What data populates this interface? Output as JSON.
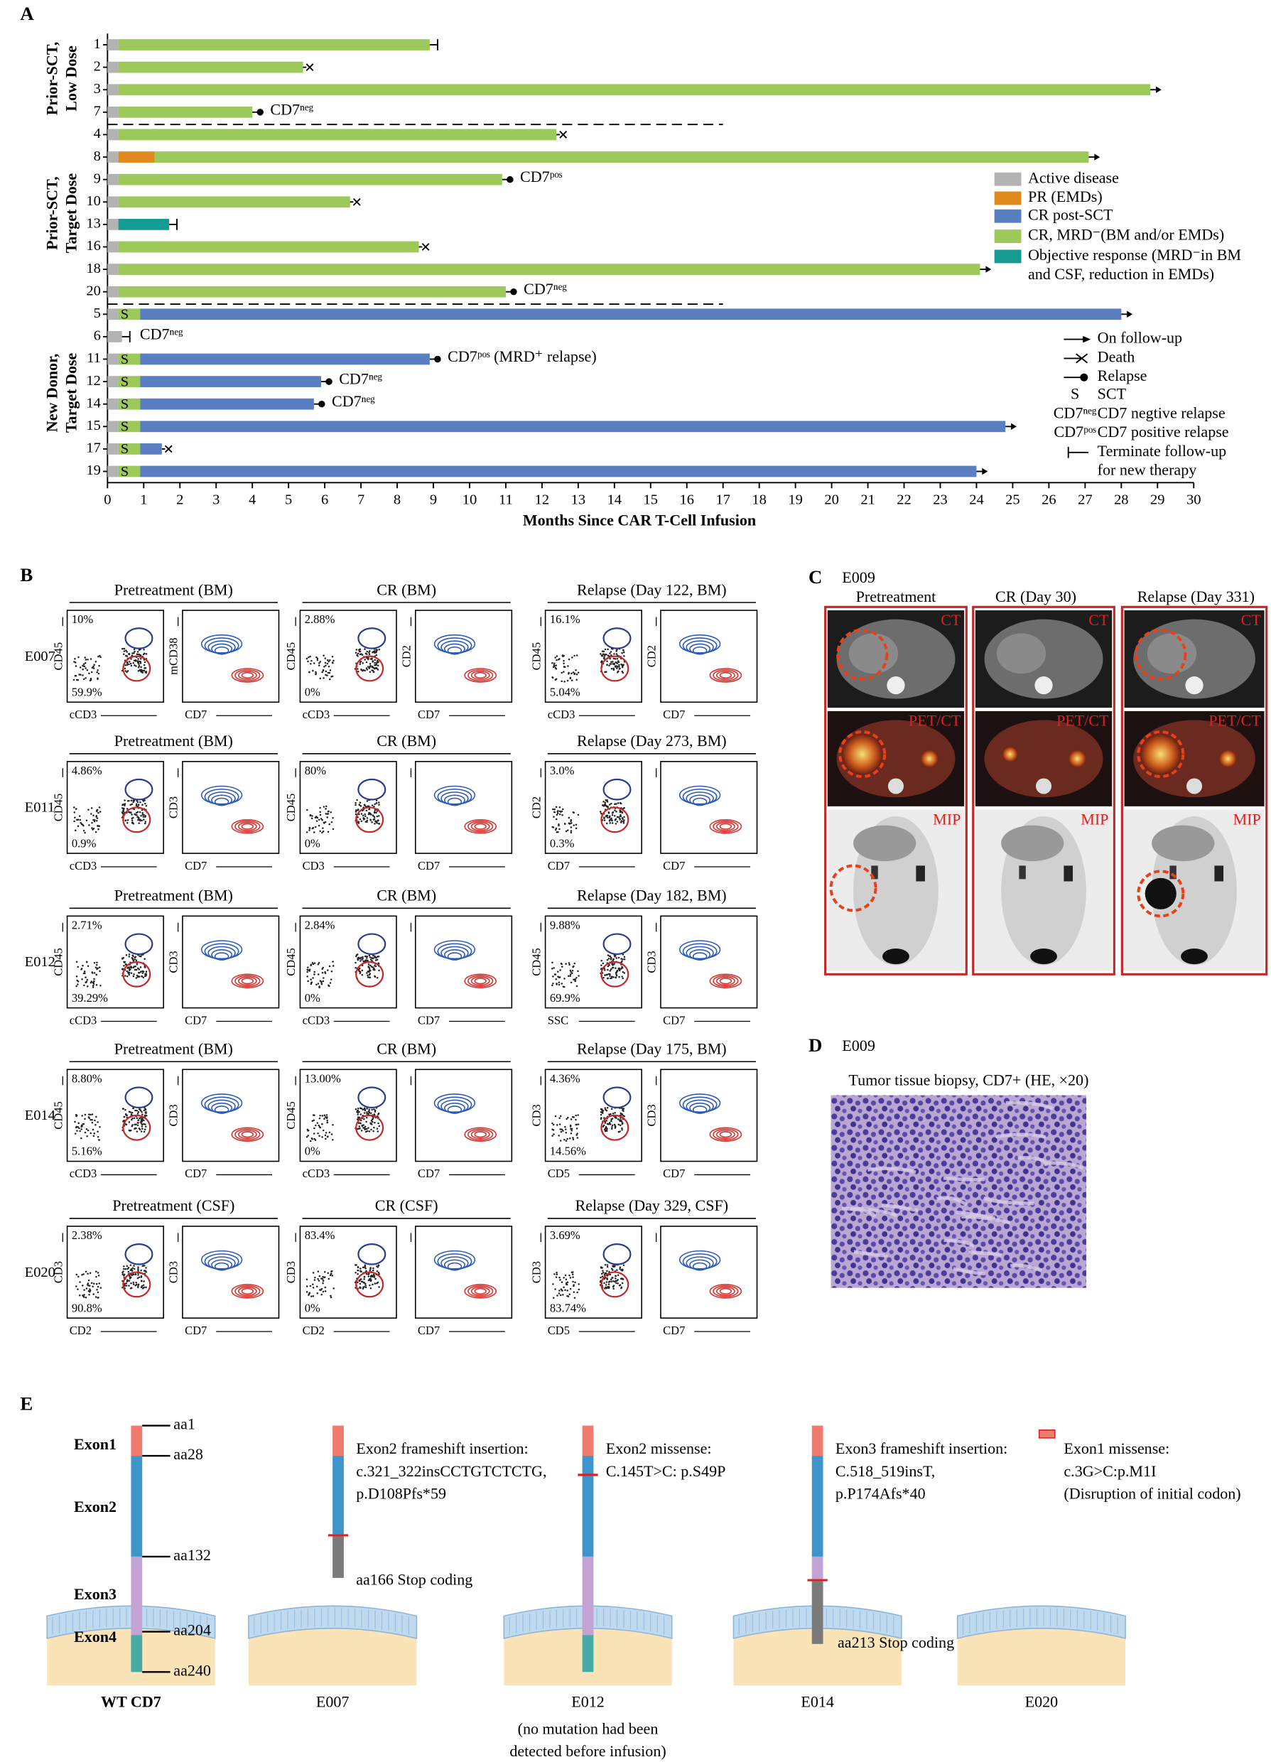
{
  "chart_data": {
    "type": "bar",
    "orientation": "horizontal",
    "stacked": true,
    "panel_label": "A",
    "xlabel": "Months Since CAR T-Cell Infusion",
    "xlim": [
      0,
      30
    ],
    "xticks": [
      0,
      1,
      2,
      3,
      4,
      5,
      6,
      7,
      8,
      9,
      10,
      11,
      12,
      13,
      14,
      15,
      16,
      17,
      18,
      19,
      20,
      21,
      22,
      23,
      24,
      25,
      26,
      27,
      28,
      29,
      30
    ],
    "legend_items": [
      {
        "name": "Active disease",
        "color": "#b3b3b3"
      },
      {
        "name": "PR (EMDs)",
        "color": "#e08a1e"
      },
      {
        "name": "CR post-SCT",
        "color": "#5a7fc1"
      },
      {
        "name": "CR, MRD⁻(BM and/or EMDs)",
        "color": "#9dc85a"
      },
      {
        "name": [
          "Objective response (MRD⁻in BM",
          "and CSF, reduction in EMDs)"
        ],
        "color": "#139b94"
      }
    ],
    "markers": [
      {
        "symbol": "arrow",
        "name": "On follow-up"
      },
      {
        "symbol": "cross",
        "name": "Death"
      },
      {
        "symbol": "dot",
        "name": "Relapse"
      },
      {
        "symbol": "S",
        "name": "SCT"
      },
      {
        "symbol": "CD7ⁿᵉᵍ",
        "name": "CD7 negtive relapse"
      },
      {
        "symbol": "CD7ᵖᵒˢ",
        "name": "CD7 positive relapse"
      },
      {
        "symbol": "bar",
        "name": [
          "Terminate follow-up",
          "for new therapy"
        ]
      }
    ],
    "groups": [
      {
        "label": [
          "Prior-SCT,",
          "Low Dose"
        ],
        "patients": [
          {
            "id": "1",
            "values": [
              0.3,
              null,
              null,
              8.6,
              null
            ],
            "end": "bar"
          },
          {
            "id": "2",
            "values": [
              0.3,
              null,
              null,
              5.1,
              null
            ],
            "end": "cross"
          },
          {
            "id": "3",
            "values": [
              0.3,
              null,
              null,
              28.5,
              null
            ],
            "end": "arrow"
          },
          {
            "id": "7",
            "values": [
              0.3,
              null,
              null,
              3.7,
              null
            ],
            "end": "dot",
            "note": "CD7ⁿᵉᵍ"
          }
        ]
      },
      {
        "label": [
          "Prior-SCT,",
          "Target Dose"
        ],
        "patients": [
          {
            "id": "4",
            "values": [
              0.3,
              null,
              null,
              12.1,
              null
            ],
            "end": "cross"
          },
          {
            "id": "8",
            "values": [
              0.3,
              1.0,
              null,
              25.8,
              null
            ],
            "end": "arrow"
          },
          {
            "id": "9",
            "values": [
              0.3,
              null,
              null,
              10.6,
              null
            ],
            "end": "dot",
            "note": "CD7ᵖᵒˢ"
          },
          {
            "id": "10",
            "values": [
              0.3,
              null,
              null,
              6.4,
              null
            ],
            "end": "cross"
          },
          {
            "id": "13",
            "values": [
              0.3,
              null,
              null,
              null,
              1.4
            ],
            "end": "bar"
          },
          {
            "id": "16",
            "values": [
              0.3,
              null,
              null,
              8.3,
              null
            ],
            "end": "cross"
          },
          {
            "id": "18",
            "values": [
              0.3,
              null,
              null,
              23.8,
              null
            ],
            "end": "arrow"
          },
          {
            "id": "20",
            "values": [
              0.3,
              null,
              null,
              10.7,
              null
            ],
            "end": "dot",
            "note": "CD7ⁿᵉᵍ"
          }
        ]
      },
      {
        "label": [
          "New Donor,",
          "Target Dose"
        ],
        "patients": [
          {
            "id": "5",
            "values": [
              0.3,
              null,
              27.1,
              0.6,
              null
            ],
            "end": "arrow",
            "sct": true
          },
          {
            "id": "6",
            "values": [
              0.4,
              null,
              null,
              null,
              null
            ],
            "end": "bar",
            "note": "CD7ⁿᵉᵍ"
          },
          {
            "id": "11",
            "values": [
              0.3,
              null,
              8.0,
              0.6,
              null
            ],
            "end": "dot",
            "sct": true,
            "note": "CD7ᵖᵒˢ (MRD⁺ relapse)"
          },
          {
            "id": "12",
            "values": [
              0.3,
              null,
              5.0,
              0.6,
              null
            ],
            "end": "dot",
            "sct": true,
            "note": "CD7ⁿᵉᵍ"
          },
          {
            "id": "14",
            "values": [
              0.3,
              null,
              4.8,
              0.6,
              null
            ],
            "end": "dot",
            "sct": true,
            "note": "CD7ⁿᵉᵍ"
          },
          {
            "id": "15",
            "values": [
              0.3,
              null,
              23.9,
              0.6,
              null
            ],
            "end": "arrow",
            "sct": true
          },
          {
            "id": "17",
            "values": [
              0.3,
              null,
              0.6,
              0.6,
              null
            ],
            "end": "cross",
            "sct": true
          },
          {
            "id": "19",
            "values": [
              0.3,
              null,
              23.1,
              0.6,
              null
            ],
            "end": "arrow",
            "sct": true
          }
        ]
      }
    ]
  },
  "panel_b": {
    "label": "B",
    "rows": [
      {
        "id": "E007",
        "columns": [
          {
            "title": "Pretreatment (BM)",
            "plots": [
              {
                "y": "CD45",
                "x": "cCD3",
                "top": "10%",
                "bottom": "59.9%"
              },
              {
                "y": "mCD38",
                "x": "CD7"
              }
            ]
          },
          {
            "title": "CR (BM)",
            "plots": [
              {
                "y": "CD45",
                "x": "cCD3",
                "top": "2.88%",
                "bottom": "0%"
              },
              {
                "y": "CD2",
                "x": "CD7"
              }
            ]
          },
          {
            "title": "Relapse (Day 122, BM)",
            "plots": [
              {
                "y": "CD45",
                "x": "cCD3",
                "top": "16.1%",
                "bottom": "5.04%"
              },
              {
                "y": "CD2",
                "x": "CD7"
              }
            ]
          }
        ]
      },
      {
        "id": "E011",
        "columns": [
          {
            "title": "Pretreatment (BM)",
            "plots": [
              {
                "y": "CD45",
                "x": "cCD3",
                "top": "4.86%",
                "bottom": "0.9%"
              },
              {
                "y": "CD3",
                "x": "CD7"
              }
            ]
          },
          {
            "title": "CR (BM)",
            "plots": [
              {
                "y": "CD45",
                "x": "CD3",
                "top": "80%",
                "bottom": "0%"
              },
              {
                "x": "CD7"
              }
            ]
          },
          {
            "title": "Relapse (Day 273, BM)",
            "plots": [
              {
                "y": "CD2",
                "x": "CD7",
                "top": "3.0%",
                "bottom": "0.3%"
              },
              {
                "x": "CD7"
              }
            ]
          }
        ]
      },
      {
        "id": "E012",
        "columns": [
          {
            "title": "Pretreatment (BM)",
            "plots": [
              {
                "y": "CD45",
                "x": "cCD3",
                "top": "2.71%",
                "bottom": "39.29%"
              },
              {
                "y": "CD3",
                "x": "CD7"
              }
            ]
          },
          {
            "title": "CR (BM)",
            "plots": [
              {
                "y": "CD45",
                "x": "cCD3",
                "top": "2.84%",
                "bottom": "0%"
              },
              {
                "x": "CD7"
              }
            ]
          },
          {
            "title": "Relapse (Day 182, BM)",
            "plots": [
              {
                "y": "CD45",
                "x": "SSC",
                "top": "9.88%",
                "bottom": "69.9%"
              },
              {
                "y": "CD3",
                "x": "CD7"
              }
            ]
          }
        ]
      },
      {
        "id": "E014",
        "columns": [
          {
            "title": "Pretreatment (BM)",
            "plots": [
              {
                "y": "CD45",
                "x": "cCD3",
                "top": "8.80%",
                "bottom": "5.16%"
              },
              {
                "y": "CD3",
                "x": "CD7"
              }
            ]
          },
          {
            "title": "CR (BM)",
            "plots": [
              {
                "y": "CD45",
                "x": "cCD3",
                "top": "13.00%",
                "bottom": "0%"
              },
              {
                "x": "CD7"
              }
            ]
          },
          {
            "title": "Relapse (Day 175, BM)",
            "plots": [
              {
                "y": "CD3",
                "x": "CD5",
                "top": "4.36%",
                "bottom": "14.56%"
              },
              {
                "y": "CD3",
                "x": "CD7"
              }
            ]
          }
        ]
      },
      {
        "id": "E020",
        "columns": [
          {
            "title": "Pretreatment (CSF)",
            "plots": [
              {
                "y": "CD3",
                "x": "CD2",
                "top": "2.38%",
                "bottom": "90.8%"
              },
              {
                "y": "CD3",
                "x": "CD7"
              }
            ]
          },
          {
            "title": "CR (CSF)",
            "plots": [
              {
                "y": "CD3",
                "x": "CD2",
                "top": "83.4%",
                "bottom": "0%"
              },
              {
                "x": "CD7"
              }
            ]
          },
          {
            "title": "Relapse (Day 329, CSF)",
            "plots": [
              {
                "y": "CD3",
                "x": "CD5",
                "top": "3.69%",
                "bottom": "83.74%"
              },
              {
                "x": "CD7"
              }
            ]
          }
        ]
      }
    ]
  },
  "panel_c": {
    "label": "C",
    "patient": "E009",
    "columns": [
      "Pretreatment",
      "CR (Day 30)",
      "Relapse (Day 331)"
    ],
    "modalities": [
      "CT",
      "PET/CT",
      "MIP"
    ]
  },
  "panel_d": {
    "label": "D",
    "patient": "E009",
    "caption": "Tumor tissue biopsy, CD7+ (HE, ×20)"
  },
  "panel_e": {
    "label": "E",
    "wt": {
      "exons": [
        "Exon1",
        "Exon2",
        "Exon3",
        "Exon4"
      ],
      "aa": [
        "aa1",
        "aa28",
        "aa132",
        "aa204",
        "aa240"
      ],
      "caption": "WT CD7"
    },
    "cases": [
      {
        "caption": [
          "E007"
        ],
        "mutation": [
          "Exon2 frameshift insertion:",
          "c.321_322insCCTGTCTCTG,",
          "p.D108Pfs*59"
        ],
        "stop": "aa166 Stop coding"
      },
      {
        "caption": [
          "E012",
          "(no mutation had been",
          "detected before infusion)"
        ],
        "mutation": [
          "Exon2 missense:",
          "C.145T>C: p.S49P"
        ]
      },
      {
        "caption": [
          "E014"
        ],
        "mutation": [
          "Exon3 frameshift insertion:",
          "C.518_519insT,",
          "p.P174Afs*40"
        ],
        "stop": "aa213 Stop coding"
      },
      {
        "caption": [
          "E020"
        ],
        "mutation": [
          "Exon1 missense:",
          "c.3G>C:p.M1I",
          "(Disruption of initial codon)"
        ]
      }
    ]
  }
}
